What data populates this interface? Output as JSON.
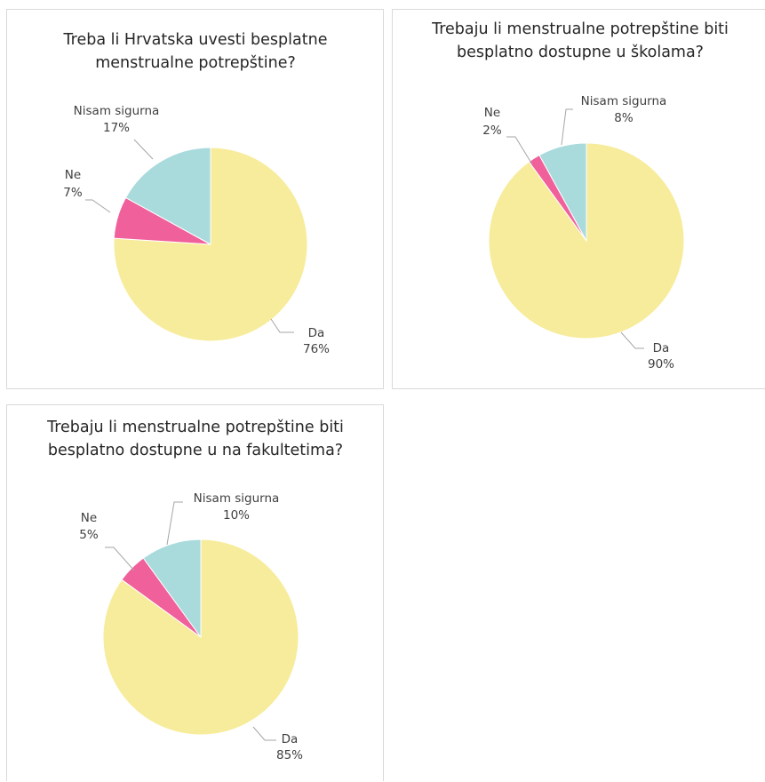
{
  "colors": {
    "Da": "#f7ec9b",
    "Ne": "#f0609a",
    "Nisam sigurna": "#a9dadc"
  },
  "chart_data": [
    {
      "type": "pie",
      "title_lines": [
        "Treba li Hrvatska uvesti besplatne",
        "menstrualne potrepštine?"
      ],
      "slices": [
        {
          "label": "Da",
          "value": 76,
          "value_text": "76%"
        },
        {
          "label": "Ne",
          "value": 7,
          "value_text": "7%"
        },
        {
          "label": "Nisam sigurna",
          "value": 17,
          "value_text": "17%"
        }
      ]
    },
    {
      "type": "pie",
      "title_lines": [
        "Trebaju li menstrualne potrepštine biti",
        "besplatno dostupne u školama?"
      ],
      "slices": [
        {
          "label": "Da",
          "value": 90,
          "value_text": "90%"
        },
        {
          "label": "Ne",
          "value": 2,
          "value_text": "2%"
        },
        {
          "label": "Nisam sigurna",
          "value": 8,
          "value_text": "8%"
        }
      ]
    },
    {
      "type": "pie",
      "title_lines": [
        "Trebaju li menstrualne potrepštine biti",
        "besplatno dostupne u na fakultetima?"
      ],
      "slices": [
        {
          "label": "Da",
          "value": 85,
          "value_text": "85%"
        },
        {
          "label": "Ne",
          "value": 5,
          "value_text": "5%"
        },
        {
          "label": "Nisam sigurna",
          "value": 10,
          "value_text": "10%"
        }
      ]
    }
  ]
}
